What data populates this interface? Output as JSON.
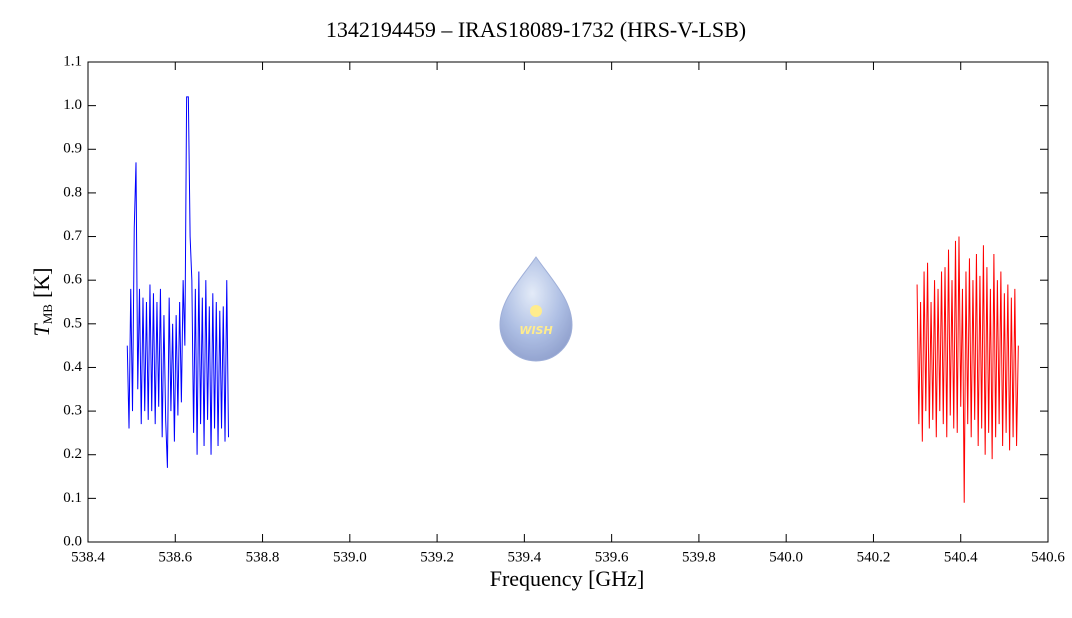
{
  "chart_data": {
    "type": "line",
    "title": "1342194459 – IRAS18089-1732 (HRS-V-LSB)",
    "x_label": "Frequency [GHz]",
    "y_label": {
      "symbol": "T",
      "subscript": "MB",
      "unit": "[K]"
    },
    "watermark": "WISH",
    "xlim": [
      538.4,
      540.6
    ],
    "xticks": [
      538.4,
      538.6,
      538.8,
      {
        "value": 539,
        "label": "539.0"
      },
      539.2,
      539.4,
      539.6,
      539.8,
      {
        "value": 540,
        "label": "540.0"
      },
      540.2,
      540.4,
      540.6
    ],
    "ylim": [
      0,
      1.1
    ],
    "yticks": [
      {
        "value": 0,
        "label": "0.0"
      },
      0.1,
      0.2,
      0.3,
      0.4,
      0.5,
      0.6,
      0.7,
      0.8,
      0.9,
      {
        "value": 1,
        "label": "1.0"
      },
      1.1
    ],
    "series": [
      {
        "color": "#0000ff",
        "x": [
          538.49,
          538.494,
          538.498,
          538.502,
          538.506,
          538.51,
          538.514,
          538.518,
          538.522,
          538.526,
          538.53,
          538.534,
          538.538,
          538.542,
          538.546,
          538.55,
          538.554,
          538.558,
          538.562,
          538.566,
          538.57,
          538.574,
          538.578,
          538.582,
          538.586,
          538.59,
          538.594,
          538.598,
          538.602,
          538.606,
          538.61,
          538.614,
          538.618,
          538.622,
          538.626,
          538.63,
          538.634,
          538.638,
          538.642,
          538.646,
          538.65,
          538.654,
          538.658,
          538.662,
          538.666,
          538.67,
          538.674,
          538.678,
          538.682,
          538.686,
          538.69,
          538.694,
          538.698,
          538.702,
          538.706,
          538.71,
          538.714,
          538.718,
          538.722
        ],
        "values": [
          0.45,
          0.26,
          0.58,
          0.3,
          0.72,
          0.87,
          0.35,
          0.58,
          0.27,
          0.56,
          0.3,
          0.55,
          0.28,
          0.59,
          0.3,
          0.57,
          0.27,
          0.55,
          0.31,
          0.58,
          0.24,
          0.52,
          0.28,
          0.17,
          0.56,
          0.3,
          0.5,
          0.23,
          0.52,
          0.29,
          0.55,
          0.32,
          0.6,
          0.45,
          1.02,
          1.02,
          0.7,
          0.6,
          0.25,
          0.58,
          0.2,
          0.62,
          0.27,
          0.56,
          0.22,
          0.6,
          0.28,
          0.54,
          0.2,
          0.57,
          0.26,
          0.55,
          0.22,
          0.53,
          0.26,
          0.54,
          0.23,
          0.6,
          0.24
        ]
      },
      {
        "color": "#ff0000",
        "x": [
          540.3,
          540.304,
          540.308,
          540.312,
          540.316,
          540.32,
          540.324,
          540.328,
          540.332,
          540.336,
          540.34,
          540.344,
          540.348,
          540.352,
          540.356,
          540.36,
          540.364,
          540.368,
          540.372,
          540.376,
          540.38,
          540.384,
          540.388,
          540.392,
          540.396,
          540.4,
          540.404,
          540.408,
          540.412,
          540.416,
          540.42,
          540.424,
          540.428,
          540.432,
          540.436,
          540.44,
          540.444,
          540.448,
          540.452,
          540.456,
          540.46,
          540.464,
          540.468,
          540.472,
          540.476,
          540.48,
          540.484,
          540.488,
          540.492,
          540.496,
          540.5,
          540.504,
          540.508,
          540.512,
          540.516,
          540.52,
          540.524,
          540.528,
          540.532
        ],
        "values": [
          0.59,
          0.27,
          0.55,
          0.23,
          0.62,
          0.3,
          0.64,
          0.26,
          0.55,
          0.28,
          0.6,
          0.24,
          0.58,
          0.3,
          0.62,
          0.27,
          0.63,
          0.24,
          0.67,
          0.29,
          0.6,
          0.26,
          0.69,
          0.25,
          0.7,
          0.31,
          0.58,
          0.09,
          0.62,
          0.27,
          0.65,
          0.24,
          0.6,
          0.28,
          0.66,
          0.22,
          0.61,
          0.26,
          0.68,
          0.2,
          0.63,
          0.25,
          0.58,
          0.19,
          0.66,
          0.24,
          0.6,
          0.27,
          0.62,
          0.22,
          0.57,
          0.25,
          0.59,
          0.21,
          0.56,
          0.24,
          0.58,
          0.22,
          0.45
        ]
      }
    ]
  }
}
